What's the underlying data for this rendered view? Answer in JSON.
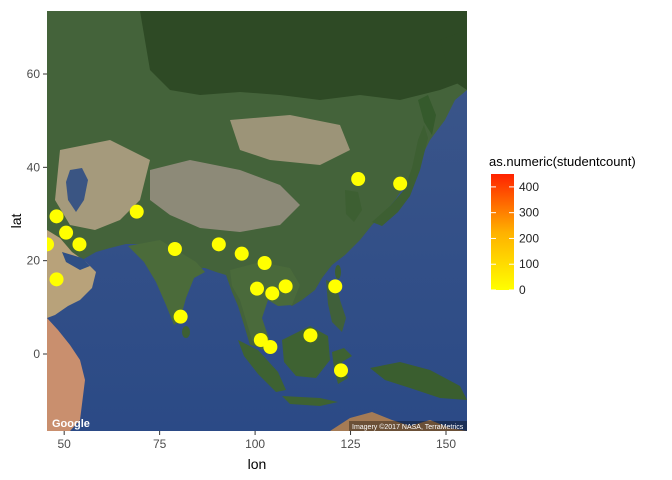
{
  "map": {
    "x_axis_title": "lon",
    "y_axis_title": "lat",
    "x_ticks": [
      50,
      75,
      100,
      125,
      150
    ],
    "y_ticks": [
      0,
      20,
      40,
      60
    ],
    "x_range": [
      45.5,
      155.5
    ],
    "y_range": [
      -16.5,
      73.5
    ],
    "google_label": "Google",
    "attribution": "Imagery ©2017 NASA, TerraMetrics",
    "point_color": "#ffff00"
  },
  "legend": {
    "title": "as.numeric(studentcount)",
    "labels": [
      "400",
      "300",
      "200",
      "100",
      "0"
    ],
    "ticks": [
      400,
      300,
      200,
      100,
      0
    ],
    "min": 0,
    "max": 450,
    "low_color": "#ffff00",
    "high_color": "#ff2200"
  },
  "points": [
    {
      "lon": 45.5,
      "lat": 23.5
    },
    {
      "lon": 48,
      "lat": 29.5
    },
    {
      "lon": 50.5,
      "lat": 26
    },
    {
      "lon": 54,
      "lat": 23.5
    },
    {
      "lon": 48,
      "lat": 16
    },
    {
      "lon": 69,
      "lat": 30.5
    },
    {
      "lon": 79,
      "lat": 22.5
    },
    {
      "lon": 80.5,
      "lat": 8
    },
    {
      "lon": 90.5,
      "lat": 23.5
    },
    {
      "lon": 96.5,
      "lat": 21.5
    },
    {
      "lon": 100.5,
      "lat": 14
    },
    {
      "lon": 102.5,
      "lat": 19.5
    },
    {
      "lon": 104.5,
      "lat": 13
    },
    {
      "lon": 108,
      "lat": 14.5
    },
    {
      "lon": 101.5,
      "lat": 3
    },
    {
      "lon": 104,
      "lat": 1.5
    },
    {
      "lon": 114.5,
      "lat": 4
    },
    {
      "lon": 121,
      "lat": 14.5
    },
    {
      "lon": 122.5,
      "lat": -3.5
    },
    {
      "lon": 127,
      "lat": 37.5
    },
    {
      "lon": 138,
      "lat": 36.5
    }
  ]
}
